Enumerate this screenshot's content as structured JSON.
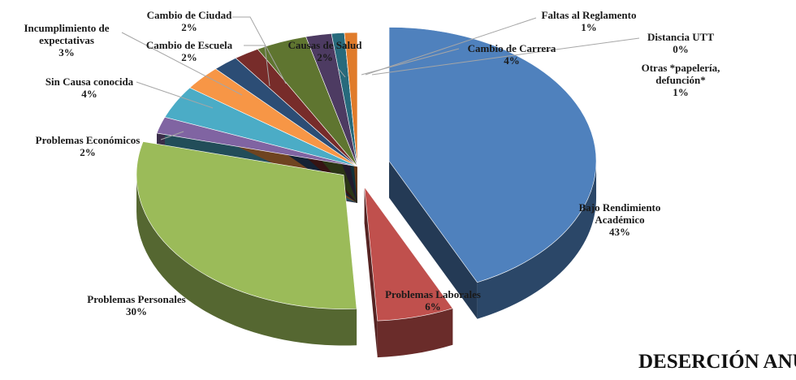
{
  "chart_data": {
    "type": "pie3d",
    "title": "DESERCIÓN ANUAL T S U",
    "categories": [
      "Bajo Rendimiento Académico",
      "Problemas Laborales",
      "Problemas Personales",
      "Problemas Económicos",
      "Sin Causa conocida",
      "Incumplimiento de expectativas",
      "Cambio de Escuela",
      "Cambio de Ciudad",
      "Cambio de Carrera",
      "Causas de Salud",
      "Faltas al Reglamento",
      "Distancia UTT",
      "Otras *papelería, defunción*"
    ],
    "values": [
      43,
      6,
      30,
      2,
      4,
      3,
      2,
      2,
      4,
      2,
      1,
      0,
      1
    ],
    "value_labels": [
      "43%",
      "6%",
      "30%",
      "2%",
      "4%",
      "3%",
      "2%",
      "2%",
      "4%",
      "2%",
      "1%",
      "0%",
      "1%"
    ],
    "colors": [
      "#4f81bd",
      "#c0504d",
      "#9bbb59",
      "#8064a2",
      "#4bacc6",
      "#f79646",
      "#2c4d75",
      "#772c2a",
      "#5f7530",
      "#4d3b62",
      "#276a7c",
      "#b65708",
      "#e07b2a"
    ]
  }
}
